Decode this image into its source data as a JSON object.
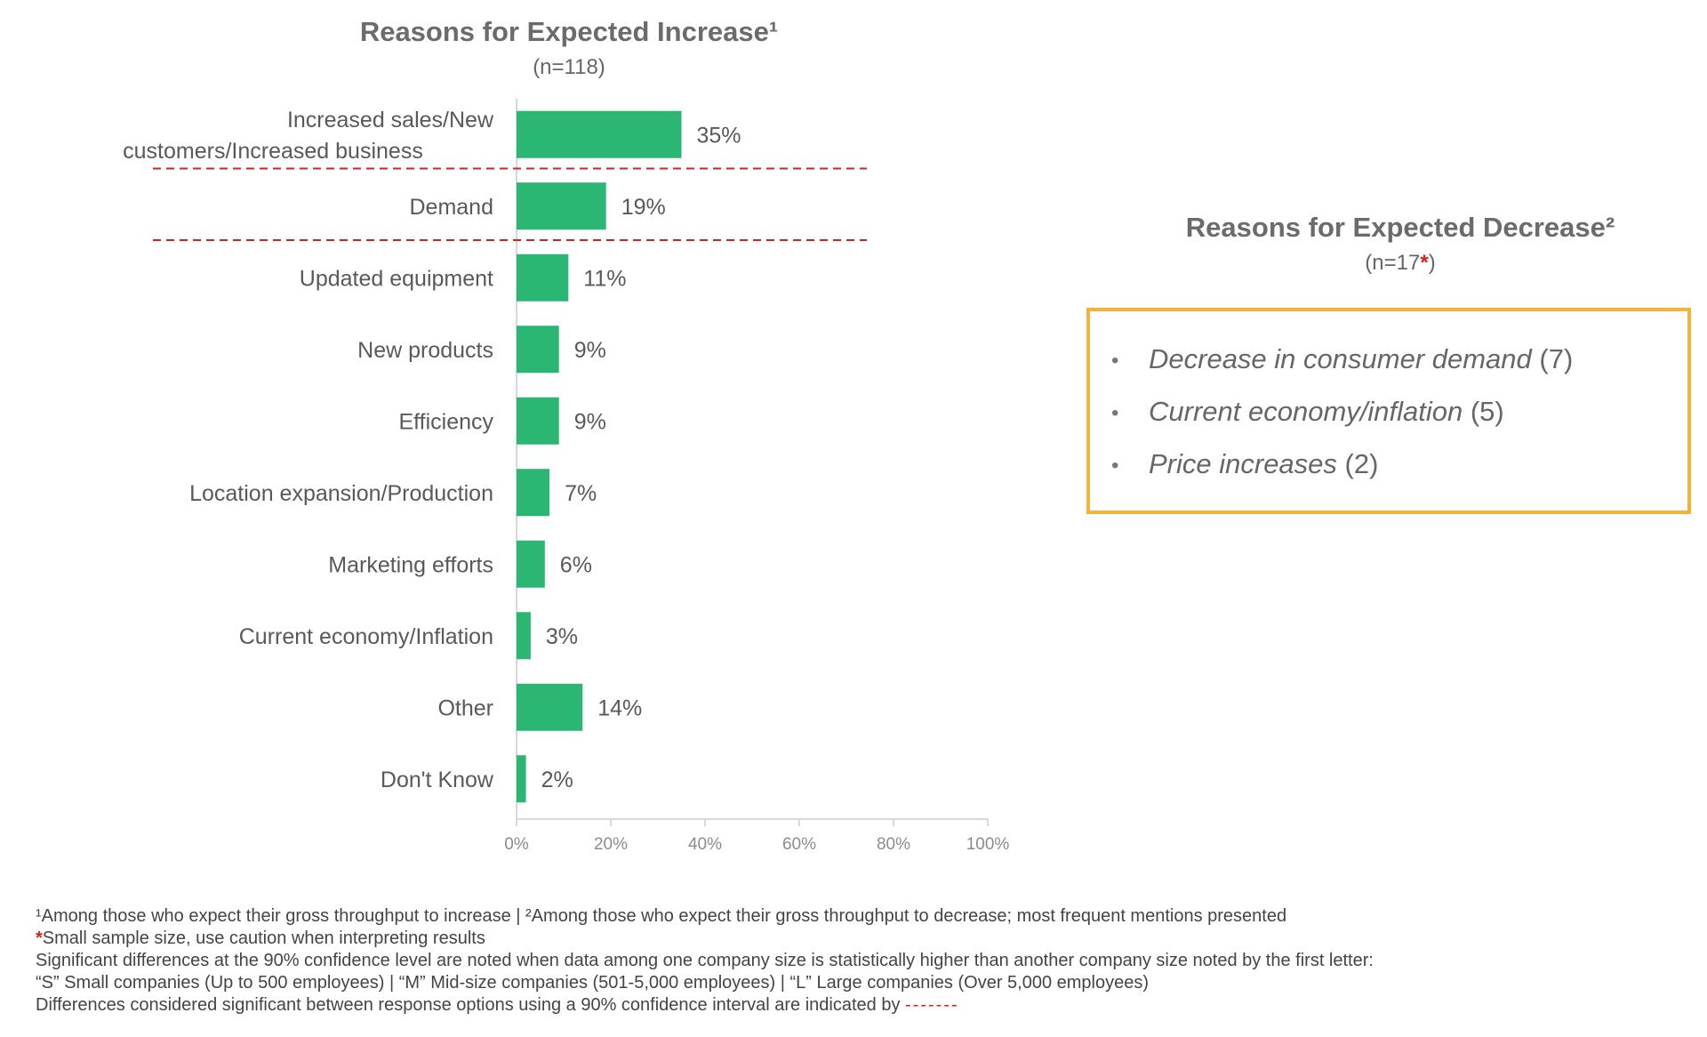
{
  "chart_data": {
    "type": "bar",
    "orientation": "horizontal",
    "title": "Reasons for Expected Increase¹",
    "subtitle": "(n=118)",
    "categories": [
      "Increased sales/New customers/Increased business",
      "Demand",
      "Updated equipment",
      "New products",
      "Efficiency",
      "Location expansion/Production",
      "Marketing efforts",
      "Current economy/Inflation",
      "Other",
      "Don't Know"
    ],
    "values": [
      35,
      19,
      11,
      9,
      9,
      7,
      6,
      3,
      14,
      2
    ],
    "value_labels": [
      "35%",
      "19%",
      "11%",
      "9%",
      "9%",
      "7%",
      "6%",
      "3%",
      "14%",
      "2%"
    ],
    "xlim": [
      0,
      100
    ],
    "x_ticks": [
      "0%",
      "20%",
      "40%",
      "60%",
      "80%",
      "100%"
    ],
    "bar_color": "#2bb673",
    "significance_line_color": "#d32020",
    "significance_separators_after_index": [
      0,
      1
    ]
  },
  "decrease": {
    "title": "Reasons for Expected Decrease²",
    "sub_prefix": "(n=17",
    "sub_star": "*",
    "sub_suffix": ")",
    "border_color": "#f0b43c",
    "items": [
      {
        "text": "Decrease in consumer demand",
        "count": "(7)"
      },
      {
        "text": "Current economy/inflation",
        "count": "(5)"
      },
      {
        "text": "Price increases",
        "count": "(2)"
      }
    ]
  },
  "footnotes": {
    "line1": "¹Among those who expect their gross throughput to increase | ²Among those who expect their gross throughput to decrease; most frequent mentions presented",
    "star": "*",
    "line2": "Small sample size, use caution when interpreting results",
    "line3": "Significant differences at the 90% confidence level are noted when data among one company size is statistically higher than another company size noted by the first letter:",
    "line4": "“S” Small companies (Up to 500 employees) | “M” Mid-size companies (501-5,000 employees) | “L” Large companies (Over 5,000 employees)",
    "line5": "Differences considered significant between response options using a 90% confidence interval are indicated by",
    "dash_legend": "-------"
  }
}
